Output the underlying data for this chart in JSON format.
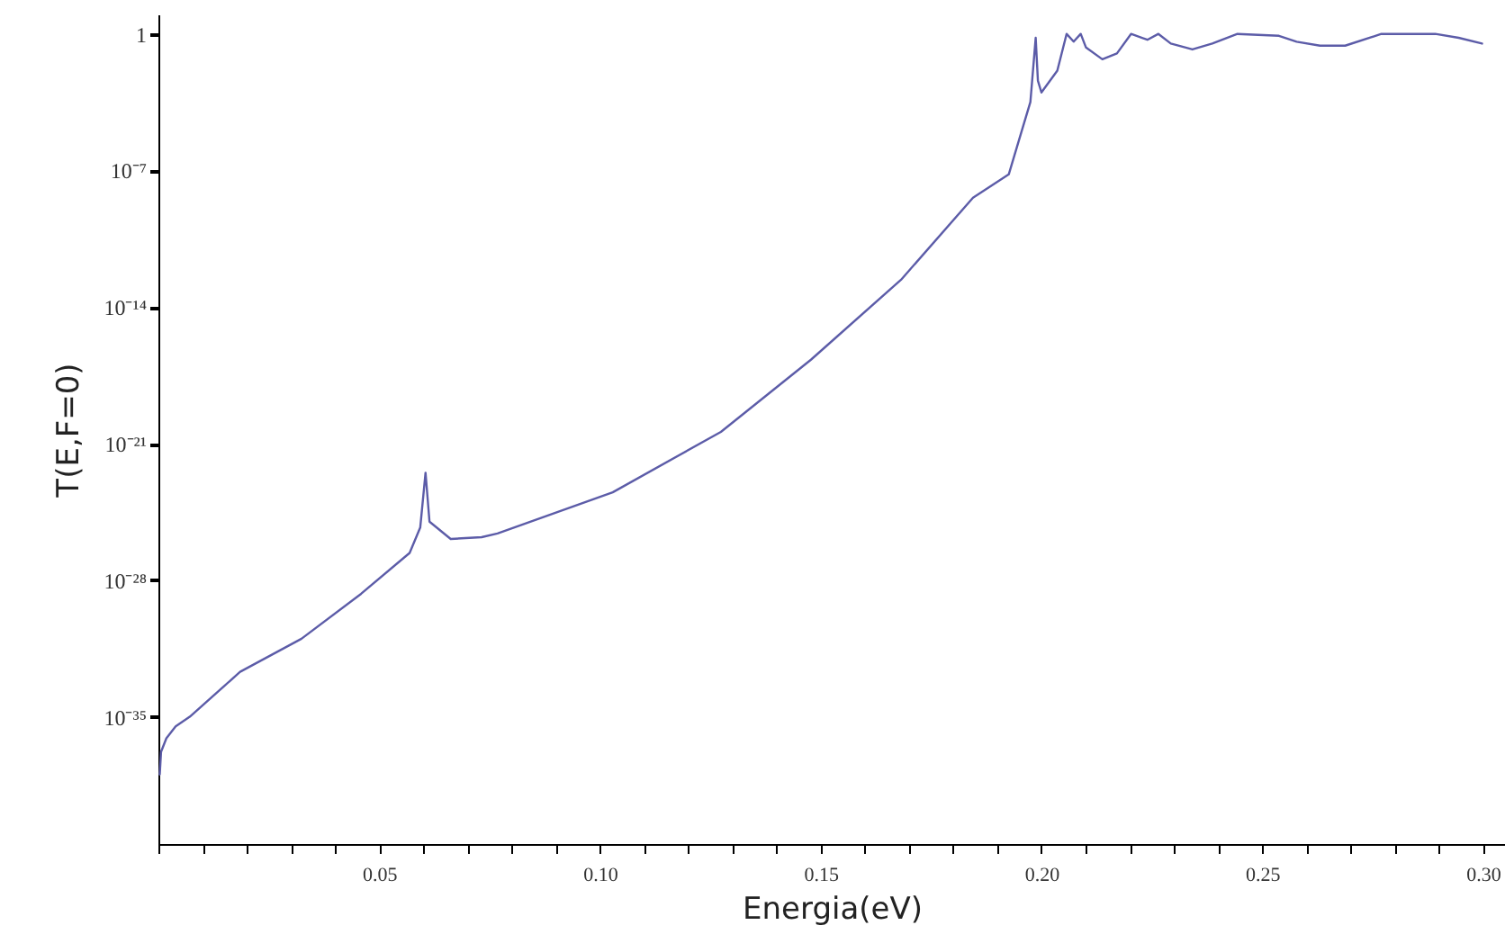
{
  "chart_data": {
    "type": "line",
    "xlabel": "Energia(eV)",
    "ylabel": "T(E,F=0)",
    "log": "y",
    "grid": false,
    "marker": "none",
    "line_style": "solid",
    "xlim": [
      0,
      0.305
    ],
    "ylim": [
      3e-42,
      10
    ],
    "xticks": [
      {
        "value": 0,
        "label": null
      },
      {
        "value": 0.01,
        "label": null
      },
      {
        "value": 0.02,
        "label": null
      },
      {
        "value": 0.03,
        "label": null
      },
      {
        "value": 0.04,
        "label": null
      },
      {
        "value": 0.05,
        "label": "0.05"
      },
      {
        "value": 0.06,
        "label": null
      },
      {
        "value": 0.07,
        "label": null
      },
      {
        "value": 0.08,
        "label": null
      },
      {
        "value": 0.09,
        "label": null
      },
      {
        "value": 0.1,
        "label": "0.10"
      },
      {
        "value": 0.11,
        "label": null
      },
      {
        "value": 0.12,
        "label": null
      },
      {
        "value": 0.13,
        "label": null
      },
      {
        "value": 0.14,
        "label": null
      },
      {
        "value": 0.15,
        "label": "0.15"
      },
      {
        "value": 0.16,
        "label": null
      },
      {
        "value": 0.17,
        "label": null
      },
      {
        "value": 0.18,
        "label": null
      },
      {
        "value": 0.19,
        "label": null
      },
      {
        "value": 0.2,
        "label": "0.20"
      },
      {
        "value": 0.21,
        "label": null
      },
      {
        "value": 0.22,
        "label": null
      },
      {
        "value": 0.23,
        "label": null
      },
      {
        "value": 0.24,
        "label": null
      },
      {
        "value": 0.25,
        "label": "0.25"
      },
      {
        "value": 0.26,
        "label": null
      },
      {
        "value": 0.27,
        "label": null
      },
      {
        "value": 0.28,
        "label": null
      },
      {
        "value": 0.29,
        "label": null
      },
      {
        "value": 0.3,
        "label": "0.30"
      }
    ],
    "yticks": [
      {
        "value": 1e-35,
        "label": "10⁻³⁵"
      },
      {
        "value": 1e-28,
        "label": "10⁻²⁸"
      },
      {
        "value": 1e-21,
        "label": "10⁻²¹"
      },
      {
        "value": 1e-14,
        "label": "10⁻¹⁴"
      },
      {
        "value": 1e-07,
        "label": "10⁻⁷"
      },
      1
    ],
    "x": [
      0.0003,
      0.0006,
      0.0018,
      0.0039,
      0.0071,
      0.0185,
      0.0324,
      0.0459,
      0.0569,
      0.0593,
      0.0605,
      0.0614,
      0.0662,
      0.0732,
      0.0768,
      0.1029,
      0.1274,
      0.1478,
      0.1682,
      0.1845,
      0.1926,
      0.1955,
      0.1975,
      0.1987,
      0.1992,
      0.2,
      0.2036,
      0.2057,
      0.2073,
      0.2089,
      0.2101,
      0.2138,
      0.2171,
      0.2203,
      0.224,
      0.2265,
      0.2293,
      0.2342,
      0.2387,
      0.2444,
      0.2538,
      0.2578,
      0.2631,
      0.2688,
      0.277,
      0.2892,
      0.2945,
      0.2998
    ],
    "series": [
      {
        "color": "#5c5ca8",
        "values": [
          1.1e-38,
          1.6e-37,
          7.9e-37,
          3.2e-36,
          1e-35,
          2e-33,
          1e-31,
          2e-29,
          2.5e-27,
          5e-26,
          3.2e-23,
          1e-25,
          1.3e-26,
          1.6e-26,
          2.5e-26,
          3.2e-24,
          4e-21,
          2e-17,
          2.5e-13,
          4e-09,
          6.3e-08,
          1e-05,
          0.00032,
          0.63,
          0.004,
          0.001,
          0.013,
          1,
          0.4,
          1,
          0.2,
          0.05,
          0.1,
          1,
          0.5,
          1,
          0.32,
          0.16,
          0.32,
          1,
          0.8,
          0.4,
          0.25,
          0.25,
          1,
          1,
          0.63,
          0.32
        ]
      }
    ]
  }
}
